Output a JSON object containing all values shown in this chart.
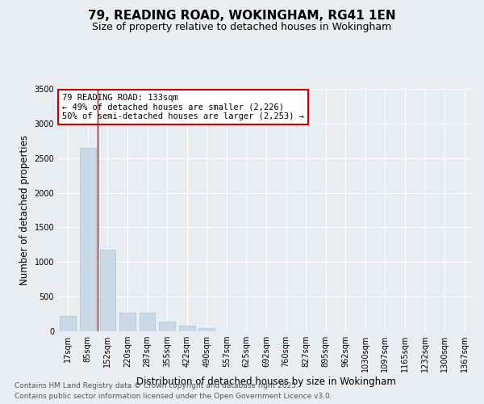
{
  "title_line1": "79, READING ROAD, WOKINGHAM, RG41 1EN",
  "title_line2": "Size of property relative to detached houses in Wokingham",
  "xlabel": "Distribution of detached houses by size in Wokingham",
  "ylabel": "Number of detached properties",
  "categories": [
    "17sqm",
    "85sqm",
    "152sqm",
    "220sqm",
    "287sqm",
    "355sqm",
    "422sqm",
    "490sqm",
    "557sqm",
    "625sqm",
    "692sqm",
    "760sqm",
    "827sqm",
    "895sqm",
    "962sqm",
    "1030sqm",
    "1097sqm",
    "1165sqm",
    "1232sqm",
    "1300sqm",
    "1367sqm"
  ],
  "values": [
    220,
    2650,
    1180,
    265,
    265,
    145,
    80,
    45,
    0,
    0,
    0,
    0,
    0,
    0,
    0,
    0,
    0,
    0,
    0,
    0,
    0
  ],
  "bar_color": "#c9d9e8",
  "bar_edge_color": "#a8c4d8",
  "vline_color": "#cc0000",
  "annotation_text": "79 READING ROAD: 133sqm\n← 49% of detached houses are smaller (2,226)\n50% of semi-detached houses are larger (2,253) →",
  "annotation_box_color": "#ffffff",
  "annotation_box_edge": "#cc0000",
  "ylim": [
    0,
    3500
  ],
  "yticks": [
    0,
    500,
    1000,
    1500,
    2000,
    2500,
    3000,
    3500
  ],
  "background_color": "#e8edf2",
  "plot_bg_color": "#e8edf2",
  "footer_line1": "Contains HM Land Registry data © Crown copyright and database right 2025.",
  "footer_line2": "Contains public sector information licensed under the Open Government Licence v3.0.",
  "title_fontsize": 11,
  "subtitle_fontsize": 9,
  "axis_label_fontsize": 8.5,
  "tick_fontsize": 7,
  "annotation_fontsize": 7.5,
  "footer_fontsize": 6.5,
  "vline_index": 1.5
}
